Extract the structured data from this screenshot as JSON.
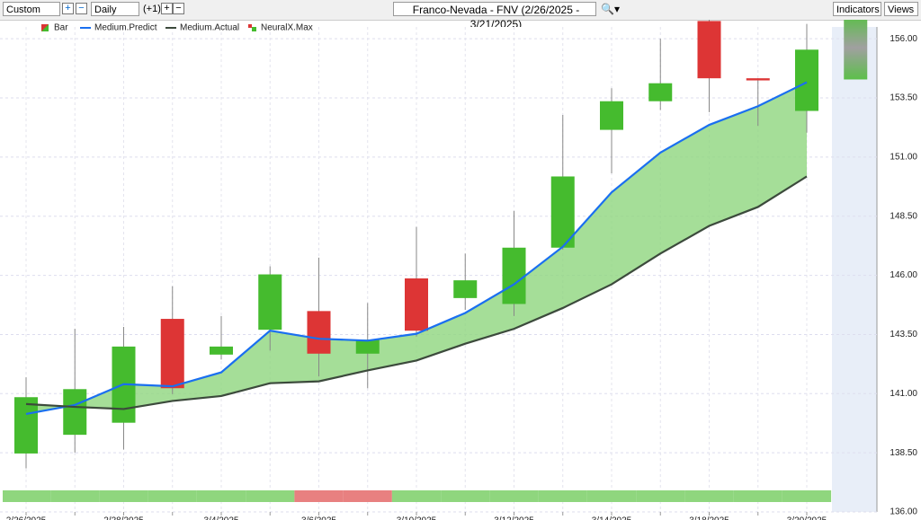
{
  "toolbar": {
    "period": "Custom",
    "interval": "Daily",
    "offset": "(+1)",
    "symbol": "Franco-Nevada - FNV (2/26/2025 - 3/21/2025)",
    "indicators": "Indicators",
    "views": "Views"
  },
  "chart_data": {
    "type": "candlestick",
    "categories": [
      "2/26/2025",
      null,
      "2/28/2025",
      null,
      "3/4/2025",
      null,
      "3/6/2025",
      null,
      "3/10/2025",
      null,
      "3/12/2025",
      null,
      "3/14/2025",
      null,
      "3/18/2025",
      null,
      "3/20/2025"
    ],
    "candles": {
      "name": "Bar",
      "up_color": "#45bb2e",
      "down_color": "#dd3535",
      "open": [
        138.47,
        139.26,
        139.77,
        144.16,
        142.65,
        143.7,
        144.49,
        142.69,
        145.87,
        145.04,
        144.79,
        147.17,
        152.15,
        153.36,
        156.75,
        154.33,
        152.95
      ],
      "high": [
        141.69,
        143.74,
        143.82,
        145.54,
        144.28,
        146.38,
        146.75,
        144.83,
        148.05,
        146.92,
        148.72,
        152.78,
        153.91,
        156.0,
        156.84,
        154.33,
        156.63
      ],
      "low": [
        137.84,
        138.51,
        138.64,
        140.98,
        142.44,
        142.82,
        141.73,
        141.23,
        143.41,
        144.54,
        144.28,
        147.09,
        150.31,
        152.99,
        152.9,
        152.32,
        152.03
      ],
      "close": [
        140.85,
        141.19,
        142.99,
        141.23,
        142.99,
        146.04,
        142.69,
        143.28,
        143.66,
        145.79,
        147.17,
        150.18,
        153.36,
        154.12,
        154.33,
        154.24,
        155.54
      ]
    },
    "series": [
      {
        "name": "Medium.Predict",
        "color": "#1a6ff0",
        "values": [
          140.14,
          140.52,
          141.4,
          141.31,
          141.9,
          143.66,
          143.32,
          143.24,
          143.53,
          144.41,
          145.62,
          147.21,
          149.51,
          151.19,
          152.36,
          153.15,
          154.16
        ]
      },
      {
        "name": "Medium.Actual",
        "color": "#3c4a3c",
        "values": [
          140.56,
          140.44,
          140.35,
          140.69,
          140.9,
          141.44,
          141.52,
          141.98,
          142.4,
          143.11,
          143.74,
          144.62,
          145.62,
          146.92,
          148.09,
          148.89,
          150.18
        ]
      }
    ],
    "neuralx_max": {
      "name": "NeuralX.Max",
      "high": 156.96,
      "low": 154.28
    },
    "strip_colors": [
      "#8fd67e",
      "#8fd67e",
      "#8fd67e",
      "#8fd67e",
      "#8fd67e",
      "#8fd67e",
      "#e88080",
      "#e88080",
      "#8fd67e",
      "#8fd67e",
      "#8fd67e",
      "#8fd67e",
      "#8fd67e",
      "#8fd67e",
      "#8fd67e",
      "#8fd67e",
      "#8fd67e"
    ],
    "ylim": [
      136,
      156.5
    ],
    "yticks": [
      {
        "value": 136,
        "label": "136.00"
      },
      {
        "value": 138.5,
        "label": "138.50"
      },
      {
        "value": 141,
        "label": "141.00"
      },
      {
        "value": 143.5,
        "label": "143.50"
      },
      {
        "value": 146,
        "label": "146.00"
      },
      {
        "value": 148.5,
        "label": "148.50"
      },
      {
        "value": 151,
        "label": "151.00"
      },
      {
        "value": 153.5,
        "label": "153.50"
      },
      {
        "value": 156,
        "label": "156.00"
      }
    ],
    "grid": true
  }
}
